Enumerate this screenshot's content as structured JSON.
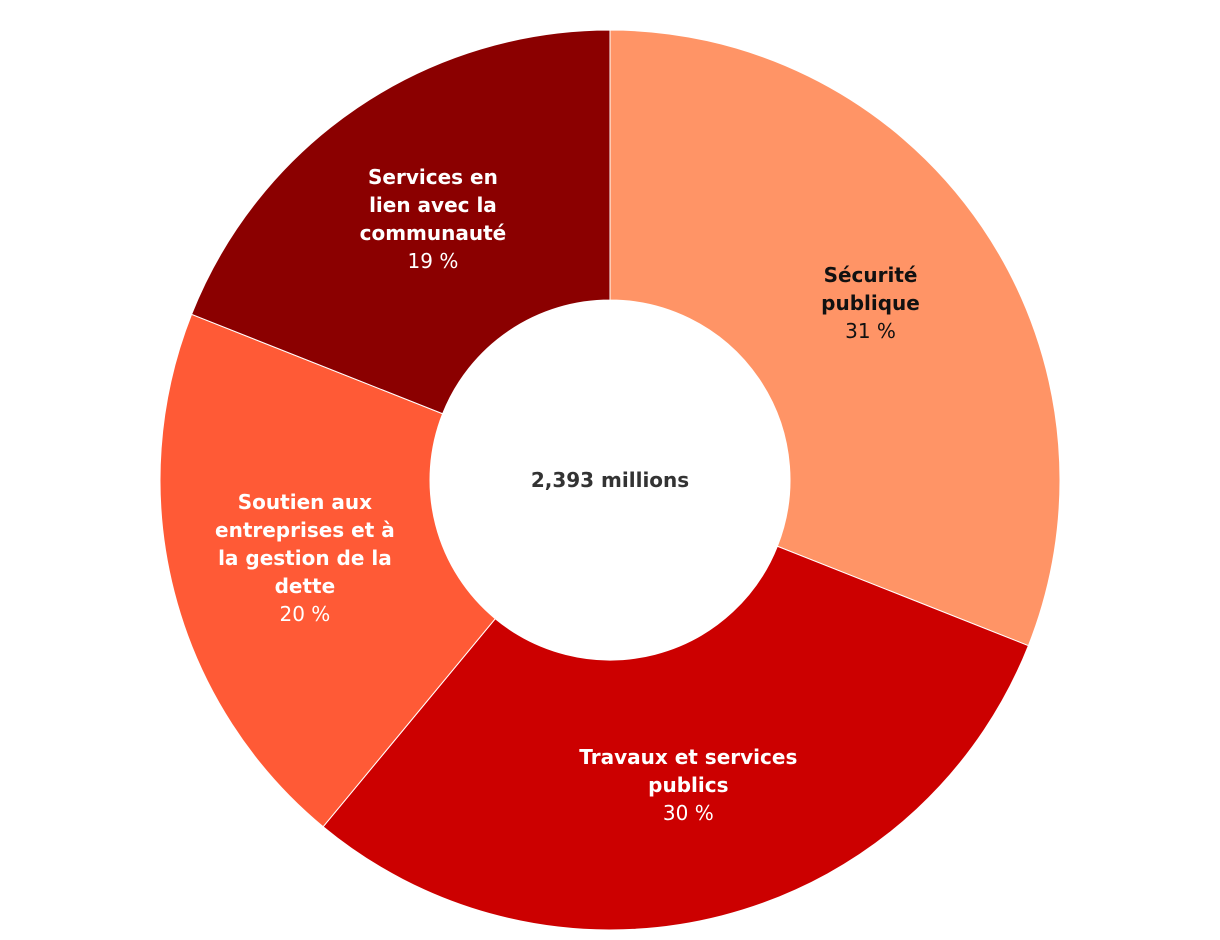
{
  "chart_data": {
    "type": "donut",
    "center_text": "2,393 millions",
    "categories": [
      "Sécurité publique",
      "Travaux et services publics",
      "Soutien aux entreprises et à la gestion de la dette",
      "Services en lien avec la communauté"
    ],
    "values": [
      31,
      30,
      20,
      19
    ],
    "value_labels": [
      "31 %",
      "30 %",
      "20 %",
      "19 %"
    ],
    "colors": [
      "#ff9466",
      "#cc0000",
      "#ff5a36",
      "#8b0000"
    ]
  }
}
